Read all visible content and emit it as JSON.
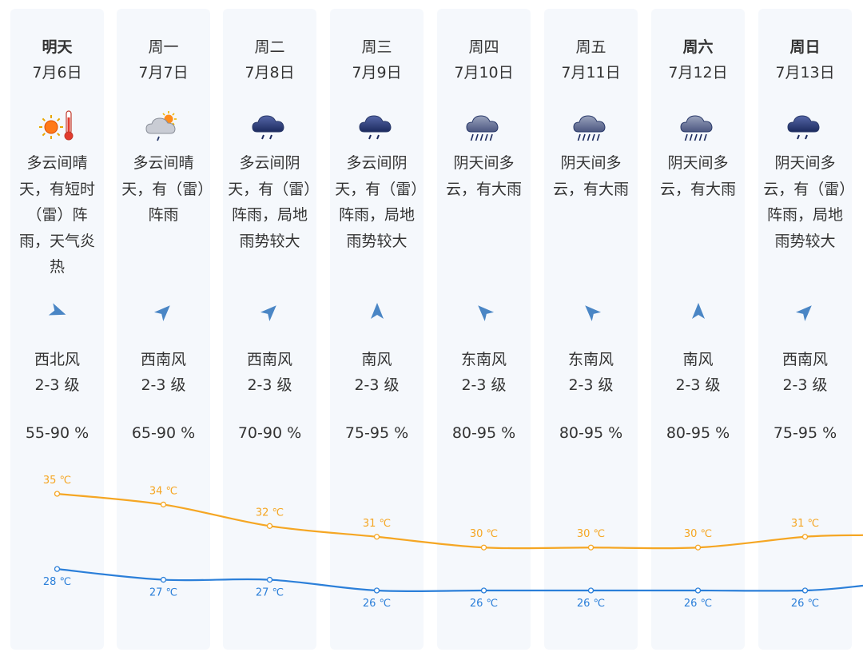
{
  "colors": {
    "card_bg": "#f5f8fc",
    "high_line": "#f5a623",
    "low_line": "#2b7fd9",
    "wind_icon": "#4a86c5",
    "text": "#333333"
  },
  "days": [
    {
      "name": "明天",
      "bold": true,
      "date": "7月6日",
      "icon": "sunny-hot-icon",
      "desc": "多云间晴天，有短时（雷）阵雨，天气炎热",
      "wind_dir": "西北风",
      "wind_level": "2-3 级",
      "humidity": "55-90 %"
    },
    {
      "name": "周一",
      "bold": false,
      "date": "7月7日",
      "icon": "partly-cloudy-rain-icon",
      "desc": "多云间晴天，有（雷）阵雨",
      "wind_dir": "西南风",
      "wind_level": "2-3 级",
      "humidity": "65-90 %"
    },
    {
      "name": "周二",
      "bold": false,
      "date": "7月8日",
      "icon": "cloud-rain-icon",
      "desc": "多云间阴天，有（雷）阵雨，局地雨势较大",
      "wind_dir": "西南风",
      "wind_level": "2-3 级",
      "humidity": "70-90 %"
    },
    {
      "name": "周三",
      "bold": false,
      "date": "7月9日",
      "icon": "cloud-rain-icon",
      "desc": "多云间阴天，有（雷）阵雨，局地雨势较大",
      "wind_dir": "南风",
      "wind_level": "2-3 级",
      "humidity": "75-95 %"
    },
    {
      "name": "周四",
      "bold": false,
      "date": "7月10日",
      "icon": "heavy-rain-icon",
      "desc": "阴天间多云，有大雨",
      "wind_dir": "东南风",
      "wind_level": "2-3 级",
      "humidity": "80-95 %"
    },
    {
      "name": "周五",
      "bold": false,
      "date": "7月11日",
      "icon": "heavy-rain-icon",
      "desc": "阴天间多云，有大雨",
      "wind_dir": "东南风",
      "wind_level": "2-3 级",
      "humidity": "80-95 %"
    },
    {
      "name": "周六",
      "bold": true,
      "date": "7月12日",
      "icon": "heavy-rain-icon",
      "desc": "阴天间多云，有大雨",
      "wind_dir": "南风",
      "wind_level": "2-3 级",
      "humidity": "80-95 %"
    },
    {
      "name": "周日",
      "bold": true,
      "date": "7月13日",
      "icon": "cloud-rain-icon",
      "desc": "阴天间多云，有（雷）阵雨，局地雨势较大",
      "wind_dir": "西南风",
      "wind_level": "2-3 级",
      "humidity": "75-95 %"
    }
  ],
  "chart_data": {
    "type": "line",
    "x": [
      "7月6日",
      "7月7日",
      "7月8日",
      "7月9日",
      "7月10日",
      "7月11日",
      "7月12日",
      "7月13日"
    ],
    "unit": "℃",
    "series": [
      {
        "values": [
          35,
          34,
          32,
          31,
          30,
          30,
          30,
          31
        ],
        "color": "#f5a623"
      },
      {
        "values": [
          28,
          27,
          27,
          26,
          26,
          26,
          26,
          26
        ],
        "color": "#2b7fd9"
      }
    ],
    "grid": false
  }
}
